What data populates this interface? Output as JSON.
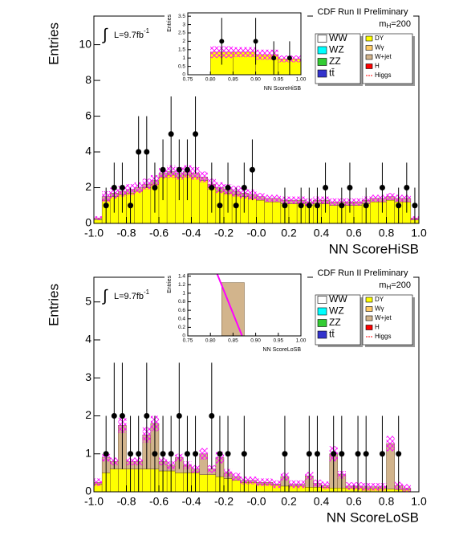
{
  "chart_data": [
    {
      "type": "histogram",
      "title": "CDF Run II Preliminary",
      "mass_label": {
        "main": "m",
        "sub": "H",
        "rest": "=200"
      },
      "lumi": {
        "integral": "∫",
        "text": "L=9.7fb",
        "sup": "-1"
      },
      "x_label": "NN ScoreHiSB",
      "y_label": "Entries",
      "bins": [
        -1,
        -0.95,
        -0.9,
        -0.85,
        -0.8,
        -0.75,
        -0.7,
        -0.65,
        -0.6,
        -0.55,
        -0.5,
        -0.45,
        -0.4,
        -0.35,
        -0.3,
        -0.25,
        -0.2,
        -0.15,
        -0.1,
        -0.05,
        0,
        0.05,
        0.1,
        0.15,
        0.2,
        0.25,
        0.3,
        0.35,
        0.4,
        0.45,
        0.5,
        0.55,
        0.6,
        0.65,
        0.7,
        0.75,
        0.8,
        0.85,
        0.9,
        0.95,
        1
      ],
      "xlim": [
        -1,
        1
      ],
      "ylim": [
        0,
        11.6
      ],
      "xticks": [
        {
          "value": -1,
          "label": "-1.0"
        },
        {
          "value": -0.8,
          "label": "-0.8"
        },
        {
          "value": -0.6,
          "label": "-0.6"
        },
        {
          "value": -0.4,
          "label": "-0.4"
        },
        {
          "value": -0.2,
          "label": "-0.2"
        },
        {
          "value": 0,
          "label": "-0.0"
        },
        {
          "value": 0.2,
          "label": "0.2"
        },
        {
          "value": 0.4,
          "label": "0.4"
        },
        {
          "value": 0.6,
          "label": "0.6"
        },
        {
          "value": 0.8,
          "label": "0.8"
        },
        {
          "value": 1,
          "label": "1.0"
        }
      ],
      "yticks": [
        0,
        2,
        4,
        6,
        8,
        10
      ],
      "series": [
        {
          "name": "DY",
          "color": "#ffff00",
          "values": [
            0.2,
            1.3,
            1.5,
            1.6,
            1.7,
            1.8,
            2.0,
            2.2,
            2.6,
            2.7,
            2.6,
            2.7,
            2.6,
            2.4,
            2.0,
            1.8,
            1.7,
            1.6,
            1.5,
            1.4,
            1.3,
            1.2,
            1.2,
            1.1,
            1.1,
            1.1,
            1.0,
            1.1,
            1.1,
            1.0,
            1.0,
            1.0,
            1.0,
            1.1,
            1.2,
            1.2,
            1.3,
            1.2,
            1.2,
            0.2
          ]
        },
        {
          "name": "W+jet",
          "color": "#d2b48c",
          "values": [
            0.1,
            0.2,
            0.2,
            0.2,
            0.2,
            0.2,
            0.2,
            0.2,
            0.2,
            0.2,
            0.2,
            0.2,
            0.2,
            0.2,
            0.2,
            0.2,
            0.2,
            0.2,
            0.2,
            0.2,
            0.2,
            0.2,
            0.2,
            0.2,
            0.2,
            0.2,
            0.2,
            0.2,
            0.2,
            0.2,
            0.2,
            0.2,
            0.2,
            0.2,
            0.2,
            0.2,
            0.2,
            0.2,
            0.2,
            0.1
          ]
        }
      ],
      "band": [
        0.1,
        0.3,
        0.3,
        0.3,
        0.3,
        0.3,
        0.3,
        0.3,
        0.3,
        0.35,
        0.35,
        0.35,
        0.35,
        0.3,
        0.3,
        0.3,
        0.3,
        0.3,
        0.3,
        0.3,
        0.2,
        0.2,
        0.2,
        0.2,
        0.2,
        0.2,
        0.2,
        0.2,
        0.2,
        0.2,
        0.2,
        0.2,
        0.2,
        0.2,
        0.2,
        0.2,
        0.2,
        0.2,
        0.2,
        0.1
      ],
      "band_color": "#ff00ff",
      "data": {
        "color": "#000000",
        "values": [
          null,
          1,
          2,
          2,
          1,
          4,
          4,
          2,
          3,
          5,
          3,
          3,
          5,
          null,
          2,
          1,
          2,
          1,
          2,
          3,
          null,
          null,
          null,
          1,
          null,
          1,
          1,
          1,
          2,
          null,
          1,
          2,
          null,
          1,
          null,
          2,
          null,
          1,
          2,
          1
        ],
        "errors": [
          null,
          1,
          1.4,
          1.4,
          1,
          2,
          2,
          1.4,
          1.7,
          2.2,
          1.7,
          1.7,
          2.2,
          null,
          1.4,
          1,
          1.4,
          1,
          1.4,
          1.7,
          null,
          null,
          null,
          1,
          null,
          1,
          1,
          1,
          1.4,
          null,
          1,
          1.4,
          null,
          1,
          null,
          1.4,
          null,
          1,
          1.4,
          1
        ]
      },
      "legend_extra": [
        {
          "name": "WW",
          "color": "#ffffff"
        },
        {
          "name": "WZ",
          "color": "#00ffff"
        },
        {
          "name": "ZZ",
          "color": "#33cc33"
        },
        {
          "name": "tt̄",
          "color": "#3333cc"
        },
        {
          "name": "Wγ",
          "color": "#ffcc66"
        },
        {
          "name": "H",
          "color": "#ff0000"
        },
        {
          "name": "Higgs",
          "color": "#ff0000"
        }
      ],
      "inset": {
        "x_label": "NN ScoreHiSB",
        "y_label": "Entries",
        "xlim": [
          0.75,
          1.0
        ],
        "ylim": [
          0,
          3.7
        ],
        "xticks": [
          {
            "value": 0.75,
            "label": "0.75"
          },
          {
            "value": 0.8,
            "label": "0.80"
          },
          {
            "value": 0.85,
            "label": "0.85"
          },
          {
            "value": 0.9,
            "label": "0.90"
          },
          {
            "value": 0.95,
            "label": "0.95"
          },
          {
            "value": 1.0,
            "label": "1.00"
          }
        ],
        "yticks": [
          0,
          0.5,
          1,
          1.5,
          2,
          2.5,
          3,
          3.5
        ],
        "bins": [
          0.8,
          0.85,
          0.9,
          0.95,
          1.0
        ],
        "series": [
          {
            "name": "DY",
            "color": "#ffff00",
            "values": [
              1.35,
              1.35,
              1.2,
              0.95
            ]
          }
        ],
        "band": [
          0.35,
          0.3,
          0.3,
          0.2
        ],
        "data": {
          "x": [
            0.825,
            0.9,
            0.94,
            0.975
          ],
          "values": [
            2,
            2,
            1,
            1
          ],
          "errors": [
            1.4,
            1.4,
            1,
            1
          ]
        }
      }
    },
    {
      "type": "histogram",
      "title": "CDF Run II Preliminary",
      "mass_label": {
        "main": "m",
        "sub": "H",
        "rest": "=200"
      },
      "lumi": {
        "integral": "∫",
        "text": "L=9.7fb",
        "sup": "-1"
      },
      "x_label": "NN ScoreLoSB",
      "y_label": "Entries",
      "bins": [
        -1,
        -0.95,
        -0.9,
        -0.85,
        -0.8,
        -0.75,
        -0.7,
        -0.65,
        -0.6,
        -0.55,
        -0.5,
        -0.45,
        -0.4,
        -0.35,
        -0.3,
        -0.25,
        -0.2,
        -0.15,
        -0.1,
        -0.05,
        0,
        0.05,
        0.1,
        0.15,
        0.2,
        0.25,
        0.3,
        0.35,
        0.4,
        0.45,
        0.5,
        0.55,
        0.6,
        0.65,
        0.7,
        0.75,
        0.8,
        0.85,
        0.9,
        0.95,
        1
      ],
      "xlim": [
        -1,
        1
      ],
      "ylim": [
        0,
        5.65
      ],
      "xticks": [
        {
          "value": -1,
          "label": "-1.0"
        },
        {
          "value": -0.8,
          "label": "-0.8"
        },
        {
          "value": -0.6,
          "label": "-0.6"
        },
        {
          "value": -0.4,
          "label": "-0.4"
        },
        {
          "value": -0.2,
          "label": "-0.2"
        },
        {
          "value": 0,
          "label": "-0.0"
        },
        {
          "value": 0.2,
          "label": "0.2"
        },
        {
          "value": 0.4,
          "label": "0.4"
        },
        {
          "value": 0.6,
          "label": "0.6"
        },
        {
          "value": 0.8,
          "label": "0.8"
        },
        {
          "value": 1,
          "label": "1.0"
        }
      ],
      "yticks": [
        0,
        1,
        2,
        3,
        4,
        5
      ],
      "series": [
        {
          "name": "DY",
          "color": "#ffff00",
          "values": [
            0.2,
            0.5,
            0.6,
            0.6,
            0.6,
            0.6,
            0.6,
            0.6,
            0.55,
            0.55,
            0.5,
            0.5,
            0.5,
            0.45,
            0.45,
            0.4,
            0.35,
            0.3,
            0.25,
            0.25,
            0.2,
            0.2,
            0.18,
            0.15,
            0.15,
            0.15,
            0.12,
            0.12,
            0.12,
            0.1,
            0.1,
            0.1,
            0.1,
            0.08,
            0.08,
            0.08,
            0.07,
            0.06,
            0.05,
            0
          ]
        },
        {
          "name": "W+jet",
          "color": "#d2b48c",
          "values": [
            0.05,
            0.4,
            0.2,
            1.15,
            0.2,
            0.2,
            0.9,
            1.2,
            0.25,
            0.15,
            0.4,
            0.2,
            0.1,
            0.55,
            0.15,
            0.5,
            0.15,
            0.1,
            0.05,
            0.05,
            0.05,
            0.05,
            0.02,
            0.25,
            0.05,
            0.05,
            0.3,
            0.1,
            0.05,
            0.9,
            0.35,
            0.05,
            0.05,
            0.05,
            0.05,
            0.05,
            1.2,
            0.1,
            0.05,
            0
          ]
        }
      ],
      "band": [
        0.1,
        0.1,
        0.1,
        0.2,
        0.1,
        0.1,
        0.2,
        0.2,
        0.1,
        0.1,
        0.1,
        0.1,
        0.1,
        0.15,
        0.1,
        0.15,
        0.1,
        0.1,
        0.1,
        0.1,
        0.1,
        0.1,
        0.1,
        0.1,
        0.1,
        0.1,
        0.1,
        0.1,
        0.1,
        0.2,
        0.1,
        0.1,
        0.1,
        0.1,
        0.1,
        0.1,
        0.2,
        0.1,
        0.1,
        0
      ],
      "band_color": "#ff00ff",
      "data": {
        "color": "#000000",
        "values": [
          null,
          1,
          2,
          2,
          1,
          1,
          2,
          1,
          1,
          1,
          2,
          1,
          1,
          null,
          2,
          1,
          1,
          null,
          1,
          null,
          null,
          null,
          null,
          1,
          null,
          null,
          1,
          1,
          null,
          1,
          1,
          null,
          1,
          1,
          null,
          1,
          null,
          1,
          null,
          null
        ],
        "errors": [
          null,
          1,
          1.4,
          1.4,
          1,
          1,
          1.4,
          1,
          1,
          1,
          1.4,
          1,
          1,
          null,
          1.4,
          1,
          1,
          null,
          1,
          null,
          null,
          null,
          null,
          1,
          null,
          null,
          1,
          1,
          null,
          1,
          1,
          null,
          1,
          1,
          null,
          1,
          null,
          1,
          null,
          null
        ]
      },
      "legend_extra": [
        {
          "name": "WW",
          "color": "#ffffff"
        },
        {
          "name": "WZ",
          "color": "#00ffff"
        },
        {
          "name": "ZZ",
          "color": "#33cc33"
        },
        {
          "name": "tt̄",
          "color": "#3333cc"
        },
        {
          "name": "Wγ",
          "color": "#ffcc66"
        },
        {
          "name": "H",
          "color": "#ff0000"
        },
        {
          "name": "Higgs",
          "color": "#ff0000"
        }
      ],
      "inset": {
        "x_label": "NN ScoreLoSB",
        "y_label": "Entries",
        "xlim": [
          0.75,
          1.0
        ],
        "ylim": [
          0,
          1.45
        ],
        "xticks": [
          {
            "value": 0.75,
            "label": "0.75"
          },
          {
            "value": 0.8,
            "label": "0.80"
          },
          {
            "value": 0.85,
            "label": "0.85"
          },
          {
            "value": 0.9,
            "label": "0.90"
          },
          {
            "value": 0.95,
            "label": "0.95"
          },
          {
            "value": 1.0,
            "label": "1.00"
          }
        ],
        "yticks": [
          0,
          0.2,
          0.4,
          0.6,
          0.8,
          1,
          1.2,
          1.4
        ],
        "bins": [
          0.825,
          0.875
        ],
        "series": [
          {
            "name": "W+jet",
            "color": "#d2b48c",
            "values": [
              1.25
            ]
          }
        ],
        "line": {
          "color": "#ff00ff",
          "x": [
            0.815,
            0.87
          ],
          "values": [
            1.45,
            0
          ]
        }
      }
    }
  ]
}
